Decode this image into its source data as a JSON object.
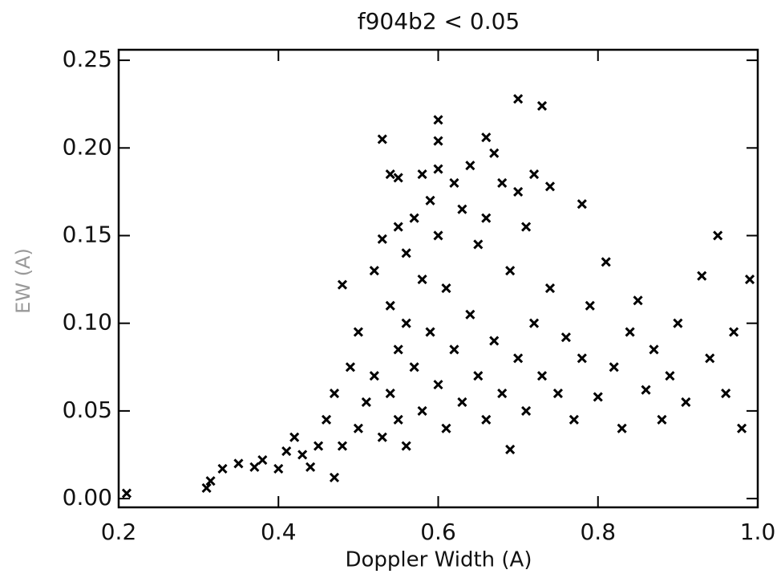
{
  "chart_data": {
    "type": "scatter",
    "title": "f904b2 < 0.05",
    "x_label": "Doppler Width (A)",
    "y_label": "EW (A)",
    "xlim": [
      0.2,
      1.0
    ],
    "ylim": [
      -0.005,
      0.256
    ],
    "xticks": [
      0.2,
      0.4,
      0.6,
      0.8,
      {
        "value": 1.0,
        "label": "1.0"
      }
    ],
    "yticks": [
      {
        "value": 0,
        "label": "0.00"
      },
      {
        "value": 0.05,
        "label": "0.05"
      },
      {
        "value": 0.1,
        "label": "0.10"
      },
      {
        "value": 0.15,
        "label": "0.15"
      },
      {
        "value": 0.2,
        "label": "0.20"
      },
      {
        "value": 0.25,
        "label": "0.25"
      }
    ],
    "color": "#000000",
    "x": [
      0.21,
      0.31,
      0.315,
      0.33,
      0.35,
      0.37,
      0.38,
      0.4,
      0.41,
      0.42,
      0.43,
      0.44,
      0.45,
      0.46,
      0.47,
      0.47,
      0.48,
      0.48,
      0.49,
      0.5,
      0.5,
      0.51,
      0.52,
      0.52,
      0.53,
      0.53,
      0.53,
      0.54,
      0.54,
      0.54,
      0.55,
      0.55,
      0.55,
      0.55,
      0.56,
      0.56,
      0.56,
      0.57,
      0.57,
      0.58,
      0.58,
      0.58,
      0.59,
      0.59,
      0.6,
      0.6,
      0.6,
      0.6,
      0.6,
      0.61,
      0.61,
      0.62,
      0.62,
      0.63,
      0.63,
      0.64,
      0.64,
      0.65,
      0.65,
      0.66,
      0.66,
      0.66,
      0.67,
      0.67,
      0.68,
      0.68,
      0.69,
      0.69,
      0.7,
      0.7,
      0.7,
      0.71,
      0.71,
      0.72,
      0.72,
      0.73,
      0.73,
      0.74,
      0.74,
      0.75,
      0.76,
      0.77,
      0.78,
      0.78,
      0.79,
      0.8,
      0.81,
      0.82,
      0.83,
      0.84,
      0.85,
      0.86,
      0.87,
      0.88,
      0.89,
      0.9,
      0.91,
      0.93,
      0.94,
      0.95,
      0.96,
      0.97,
      0.99,
      0.98
    ],
    "y": [
      0.003,
      0.006,
      0.01,
      0.017,
      0.02,
      0.018,
      0.022,
      0.017,
      0.027,
      0.035,
      0.025,
      0.018,
      0.03,
      0.045,
      0.012,
      0.06,
      0.122,
      0.03,
      0.075,
      0.04,
      0.095,
      0.055,
      0.13,
      0.07,
      0.205,
      0.148,
      0.035,
      0.185,
      0.11,
      0.06,
      0.183,
      0.155,
      0.085,
      0.045,
      0.14,
      0.1,
      0.03,
      0.16,
      0.075,
      0.185,
      0.125,
      0.05,
      0.17,
      0.095,
      0.216,
      0.204,
      0.188,
      0.15,
      0.065,
      0.12,
      0.04,
      0.18,
      0.085,
      0.165,
      0.055,
      0.19,
      0.105,
      0.145,
      0.07,
      0.206,
      0.16,
      0.045,
      0.197,
      0.09,
      0.18,
      0.06,
      0.13,
      0.028,
      0.228,
      0.175,
      0.08,
      0.155,
      0.05,
      0.185,
      0.1,
      0.224,
      0.07,
      0.178,
      0.12,
      0.06,
      0.092,
      0.045,
      0.168,
      0.08,
      0.11,
      0.058,
      0.135,
      0.075,
      0.04,
      0.095,
      0.113,
      0.062,
      0.085,
      0.045,
      0.07,
      0.1,
      0.055,
      0.127,
      0.08,
      0.15,
      0.06,
      0.095,
      0.125,
      0.04
    ]
  }
}
